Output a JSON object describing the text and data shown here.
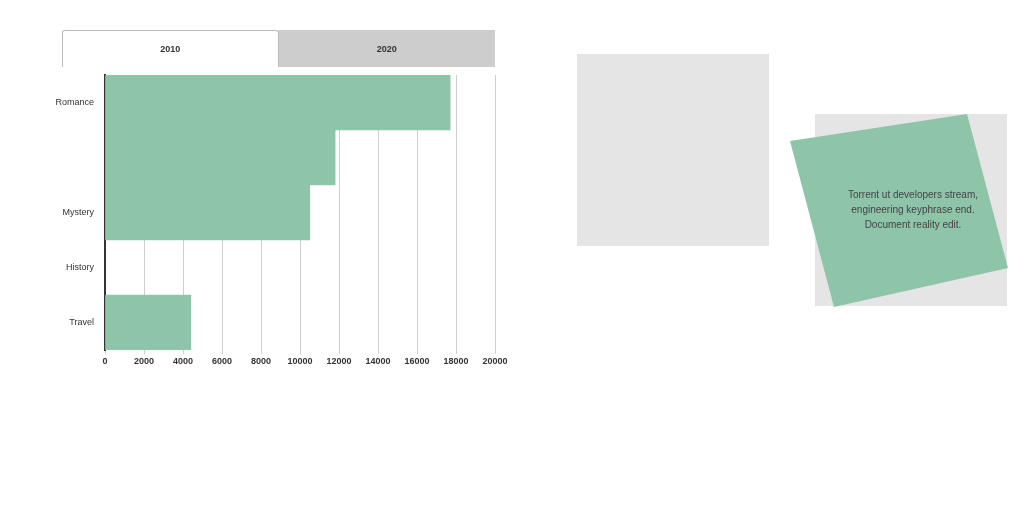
{
  "chart_data": {
    "type": "bar",
    "orientation": "horizontal",
    "categories": [
      "Romance",
      null,
      "Mystery",
      "History",
      "Travel"
    ],
    "values": [
      17700,
      11800,
      10500,
      null,
      4400
    ],
    "color": "#8ec4a8",
    "xlim": [
      0,
      20000
    ],
    "xticks": [
      0,
      2000,
      4000,
      6000,
      8000,
      10000,
      12000,
      14000,
      16000,
      18000,
      20000
    ],
    "grid": "x",
    "legend": false,
    "annotations": [
      "2010",
      "2020",
      "Torrent ut developers stream, engineering keyphrase end. Document reality edit."
    ]
  }
}
